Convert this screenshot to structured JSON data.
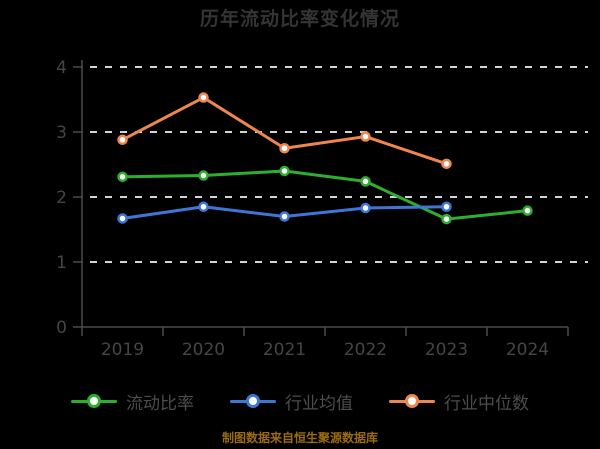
{
  "header": {
    "title": "历年流动比率变化情况"
  },
  "footer": {
    "caption": "制图数据来自恒生聚源数据库",
    "caption_color": "#9a6b10"
  },
  "chart_data": {
    "type": "line",
    "title": "历年流动比率变化情况",
    "categories": [
      "2019",
      "2020",
      "2021",
      "2022",
      "2023",
      "2024"
    ],
    "series": [
      {
        "name": "流动比率",
        "color": "#2eae2e",
        "values": [
          2.31,
          2.33,
          2.4,
          2.24,
          1.66,
          1.79
        ]
      },
      {
        "name": "行业均值",
        "color": "#3e76d6",
        "values": [
          1.67,
          1.85,
          1.7,
          1.83,
          1.85,
          null
        ]
      },
      {
        "name": "行业中位数",
        "color": "#ef8650",
        "values": [
          2.88,
          3.53,
          2.75,
          2.93,
          2.51,
          null
        ]
      }
    ],
    "ylim": [
      0,
      4
    ],
    "yticks": [
      0,
      1,
      2,
      3,
      4
    ],
    "grid": "horizontal-dashed",
    "legend_position": "bottom",
    "marker": "circle-white-core",
    "colors": {
      "background": "#000000",
      "gridline": "#d4d4d4",
      "axis": "#4a4a4a",
      "tick_label": "#454545",
      "title": "#343434",
      "legend_text": "#4c4c4c"
    }
  }
}
